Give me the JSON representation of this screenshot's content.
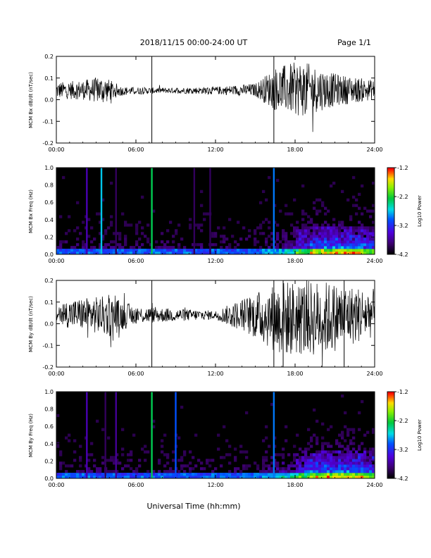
{
  "header": {
    "title": "2018/11/15  00:00-24:00 UT",
    "page": "Page 1/1"
  },
  "x_axis_label": "Universal Time (hh:mm)",
  "chart_data": [
    {
      "type": "line",
      "panel": "bx-dbdt",
      "ylabel": "MCM Bx dB/dt (nT/sec)",
      "xlim": [
        0,
        24
      ],
      "ylim": [
        -0.2,
        0.2
      ],
      "x_ticks": [
        "00:00",
        "06:00",
        "12:00",
        "18:00",
        "24:00"
      ],
      "y_ticks": [
        "0.2",
        "0.1",
        "0.0",
        "-0.1",
        "-0.2"
      ],
      "baseline": 0.04,
      "spikes": [
        {
          "x": 7.2,
          "ymin": -0.2,
          "ymax": 0.2
        },
        {
          "x": 16.4,
          "ymin": -0.2,
          "ymax": 0.2
        }
      ],
      "envelope": [
        {
          "x": 0,
          "lo": 0.005,
          "hi": 0.08
        },
        {
          "x": 2,
          "lo": 0.0,
          "hi": 0.09
        },
        {
          "x": 3.5,
          "lo": -0.02,
          "hi": 0.11
        },
        {
          "x": 5,
          "lo": 0.02,
          "hi": 0.06
        },
        {
          "x": 8,
          "lo": 0.03,
          "hi": 0.055
        },
        {
          "x": 12,
          "lo": 0.025,
          "hi": 0.06
        },
        {
          "x": 15,
          "lo": 0.015,
          "hi": 0.075
        },
        {
          "x": 16.5,
          "lo": -0.05,
          "hi": 0.15
        },
        {
          "x": 18.5,
          "lo": -0.08,
          "hi": 0.18
        },
        {
          "x": 21,
          "lo": -0.03,
          "hi": 0.12
        },
        {
          "x": 24,
          "lo": 0.0,
          "hi": 0.09
        }
      ]
    },
    {
      "type": "heatmap",
      "panel": "bx-spectrogram",
      "ylabel": "MCM Bx Freq (Hz)",
      "xlim": [
        0,
        24
      ],
      "ylim": [
        0,
        1.0
      ],
      "x_ticks": [
        "00:00",
        "06:00",
        "12:00",
        "18:00",
        "24:00"
      ],
      "y_ticks": [
        "1.0",
        "0.8",
        "0.6",
        "0.4",
        "0.2",
        "0.0"
      ],
      "colorbar": {
        "label": "Log10 Power",
        "ticks": [
          "-1.2",
          "-2.2",
          "-3.2",
          "-4.2"
        ],
        "range": [
          -4.2,
          -1.2
        ]
      },
      "vertical_bands": [
        {
          "x": 2.3,
          "power": -3.6
        },
        {
          "x": 3.4,
          "power": -2.7
        },
        {
          "x": 4.5,
          "power": -3.9
        },
        {
          "x": 7.2,
          "power": -2.3
        },
        {
          "x": 10.4,
          "power": -3.9
        },
        {
          "x": 11.6,
          "power": -3.9
        },
        {
          "x": 16.4,
          "power": -2.9
        }
      ]
    },
    {
      "type": "line",
      "panel": "by-dbdt",
      "ylabel": "MCM By dB/dt (nT/sec)",
      "xlim": [
        0,
        24
      ],
      "ylim": [
        -0.2,
        0.2
      ],
      "x_ticks": [
        "00:00",
        "06:00",
        "12:00",
        "18:00",
        "24:00"
      ],
      "y_ticks": [
        "0.2",
        "0.1",
        "0.0",
        "-0.1",
        "-0.2"
      ],
      "baseline": 0.04,
      "spikes": [
        {
          "x": 7.2,
          "ymin": -0.2,
          "ymax": 0.2
        },
        {
          "x": 16.4,
          "ymin": -0.2,
          "ymax": 0.2
        },
        {
          "x": 17.1,
          "ymin": -0.2,
          "ymax": 0.2
        },
        {
          "x": 21.7,
          "ymin": -0.2,
          "ymax": 0.2
        }
      ],
      "envelope": [
        {
          "x": 0,
          "lo": -0.01,
          "hi": 0.1
        },
        {
          "x": 2,
          "lo": -0.03,
          "hi": 0.12
        },
        {
          "x": 4,
          "lo": -0.06,
          "hi": 0.13
        },
        {
          "x": 6,
          "lo": 0.0,
          "hi": 0.08
        },
        {
          "x": 9,
          "lo": 0.01,
          "hi": 0.07
        },
        {
          "x": 12,
          "lo": 0.02,
          "hi": 0.06
        },
        {
          "x": 14.5,
          "lo": -0.05,
          "hi": 0.13
        },
        {
          "x": 17,
          "lo": -0.15,
          "hi": 0.2
        },
        {
          "x": 20,
          "lo": -0.15,
          "hi": 0.2
        },
        {
          "x": 24,
          "lo": -0.06,
          "hi": 0.16
        }
      ]
    },
    {
      "type": "heatmap",
      "panel": "by-spectrogram",
      "ylabel": "MCM By Freq (Hz)",
      "xlim": [
        0,
        24
      ],
      "ylim": [
        0,
        1.0
      ],
      "x_ticks": [
        "00:00",
        "06:00",
        "12:00",
        "18:00",
        "24:00"
      ],
      "y_ticks": [
        "1.0",
        "0.8",
        "0.6",
        "0.4",
        "0.2",
        "0.0"
      ],
      "colorbar": {
        "label": "Log10 Power",
        "ticks": [
          "-1.2",
          "-2.2",
          "-3.2",
          "-4.2"
        ],
        "range": [
          -4.2,
          -1.2
        ]
      },
      "vertical_bands": [
        {
          "x": 2.3,
          "power": -3.6
        },
        {
          "x": 3.7,
          "power": -3.9
        },
        {
          "x": 4.5,
          "power": -3.7
        },
        {
          "x": 7.2,
          "power": -2.3
        },
        {
          "x": 9.0,
          "power": -3.0
        },
        {
          "x": 16.4,
          "power": -2.9
        }
      ]
    }
  ]
}
